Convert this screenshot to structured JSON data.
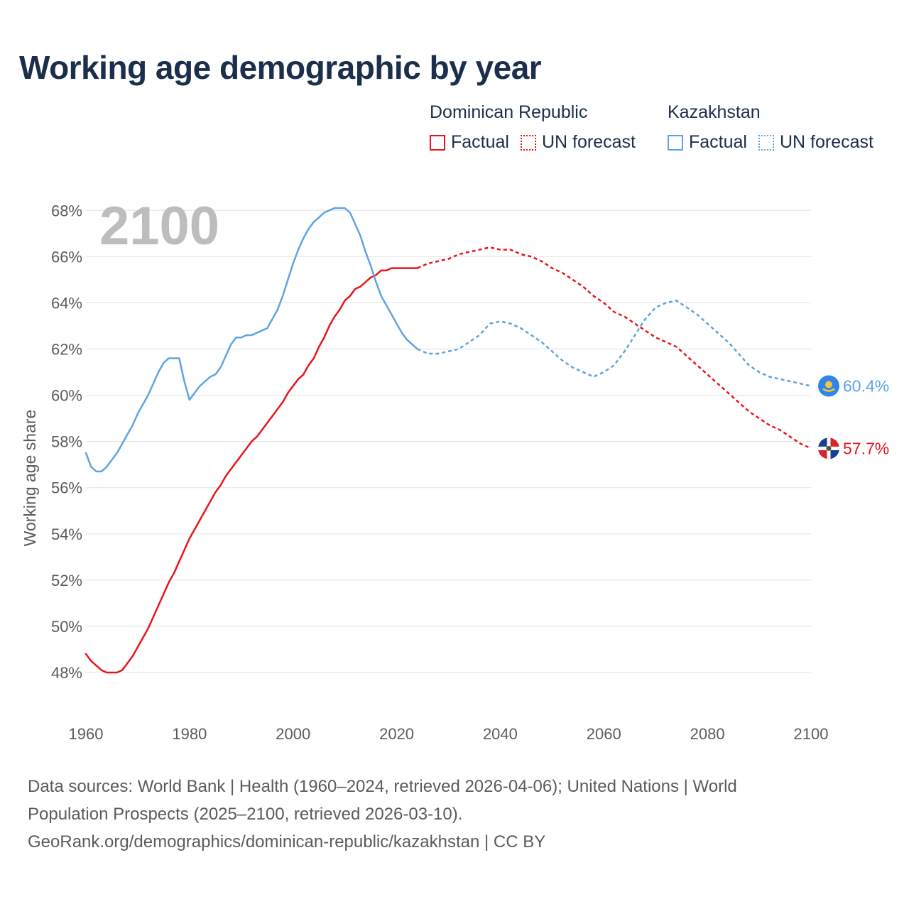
{
  "title": "Working age demographic by year",
  "legend": {
    "dominican": {
      "name": "Dominican Republic",
      "factual": "Factual",
      "forecast": "UN forecast",
      "color": "#e8141b"
    },
    "kazakhstan": {
      "name": "Kazakhstan",
      "factual": "Factual",
      "forecast": "UN forecast",
      "color": "#5fa4e0"
    }
  },
  "footer": {
    "line1": "Data sources: World Bank | Health (1960–2024, retrieved 2026-04-06); United Nations | World",
    "line2": "Population Prospects (2025–2100, retrieved 2026-03-10).",
    "line3": "GeoRank.org/demographics/dominican-republic/kazakhstan | CC BY"
  },
  "chart_data": {
    "type": "line",
    "title": "Working age demographic by year",
    "ylabel": "Working age share",
    "xlabel": "",
    "xlim": [
      1960,
      2100
    ],
    "ylim": [
      46.8,
      68.5
    ],
    "xticks": [
      1960,
      1980,
      2000,
      2020,
      2040,
      2060,
      2080,
      2100
    ],
    "xtick_labels": [
      "1960",
      "1980",
      "2000",
      "2020",
      "2040",
      "2060",
      "2080",
      "2100"
    ],
    "yticks": [
      48,
      50,
      52,
      54,
      56,
      58,
      60,
      62,
      64,
      66,
      68
    ],
    "ytick_labels": [
      "48%",
      "50%",
      "52%",
      "54%",
      "56%",
      "58%",
      "60%",
      "62%",
      "64%",
      "66%",
      "68%"
    ],
    "current_year_label": "2100",
    "series": [
      {
        "name": "Dominican Republic",
        "color": "#e8141b",
        "end_label": "57.7%",
        "end_icon": "dominican-republic-flag-icon",
        "factual": {
          "x": [
            1960,
            1961,
            1962,
            1963,
            1964,
            1965,
            1966,
            1967,
            1968,
            1969,
            1970,
            1971,
            1972,
            1973,
            1974,
            1975,
            1976,
            1977,
            1978,
            1979,
            1980,
            1981,
            1982,
            1983,
            1984,
            1985,
            1986,
            1987,
            1988,
            1989,
            1990,
            1991,
            1992,
            1993,
            1994,
            1995,
            1996,
            1997,
            1998,
            1999,
            2000,
            2001,
            2002,
            2003,
            2004,
            2005,
            2006,
            2007,
            2008,
            2009,
            2010,
            2011,
            2012,
            2013,
            2014,
            2015,
            2016,
            2017,
            2018,
            2019,
            2020,
            2021,
            2022,
            2023,
            2024
          ],
          "y": [
            48.8,
            48.5,
            48.3,
            48.1,
            48.0,
            48.0,
            48.0,
            48.1,
            48.4,
            48.7,
            49.1,
            49.5,
            49.9,
            50.4,
            50.9,
            51.4,
            51.9,
            52.3,
            52.8,
            53.3,
            53.8,
            54.2,
            54.6,
            55.0,
            55.4,
            55.8,
            56.1,
            56.5,
            56.8,
            57.1,
            57.4,
            57.7,
            58.0,
            58.2,
            58.5,
            58.8,
            59.1,
            59.4,
            59.7,
            60.1,
            60.4,
            60.7,
            60.9,
            61.3,
            61.6,
            62.1,
            62.5,
            63.0,
            63.4,
            63.7,
            64.1,
            64.3,
            64.6,
            64.7,
            64.9,
            65.1,
            65.2,
            65.4,
            65.4,
            65.5,
            65.5,
            65.5,
            65.5,
            65.5,
            65.5
          ]
        },
        "forecast": {
          "x": [
            2024,
            2026,
            2028,
            2030,
            2032,
            2034,
            2036,
            2038,
            2040,
            2042,
            2044,
            2046,
            2048,
            2050,
            2052,
            2054,
            2056,
            2058,
            2060,
            2062,
            2064,
            2066,
            2068,
            2070,
            2072,
            2074,
            2076,
            2078,
            2080,
            2082,
            2084,
            2086,
            2088,
            2090,
            2092,
            2094,
            2096,
            2098,
            2100
          ],
          "y": [
            65.5,
            65.7,
            65.8,
            65.9,
            66.1,
            66.2,
            66.3,
            66.4,
            66.3,
            66.3,
            66.1,
            66.0,
            65.8,
            65.5,
            65.3,
            65.0,
            64.7,
            64.3,
            64.0,
            63.6,
            63.4,
            63.1,
            62.8,
            62.5,
            62.3,
            62.1,
            61.7,
            61.3,
            60.9,
            60.5,
            60.1,
            59.7,
            59.3,
            59.0,
            58.7,
            58.5,
            58.2,
            57.9,
            57.7
          ]
        }
      },
      {
        "name": "Kazakhstan",
        "color": "#5fa4e0",
        "end_label": "60.4%",
        "end_icon": "kazakhstan-flag-icon",
        "factual": {
          "x": [
            1960,
            1961,
            1962,
            1963,
            1964,
            1965,
            1966,
            1967,
            1968,
            1969,
            1970,
            1971,
            1972,
            1973,
            1974,
            1975,
            1976,
            1977,
            1978,
            1979,
            1980,
            1981,
            1982,
            1983,
            1984,
            1985,
            1986,
            1987,
            1988,
            1989,
            1990,
            1991,
            1992,
            1993,
            1994,
            1995,
            1996,
            1997,
            1998,
            1999,
            2000,
            2001,
            2002,
            2003,
            2004,
            2005,
            2006,
            2007,
            2008,
            2009,
            2010,
            2011,
            2012,
            2013,
            2014,
            2015,
            2016,
            2017,
            2018,
            2019,
            2020,
            2021,
            2022,
            2023,
            2024
          ],
          "y": [
            57.5,
            56.9,
            56.7,
            56.7,
            56.9,
            57.2,
            57.5,
            57.9,
            58.3,
            58.7,
            59.2,
            59.6,
            60.0,
            60.5,
            61.0,
            61.4,
            61.6,
            61.6,
            61.6,
            60.6,
            59.8,
            60.1,
            60.4,
            60.6,
            60.8,
            60.9,
            61.2,
            61.7,
            62.2,
            62.5,
            62.5,
            62.6,
            62.6,
            62.7,
            62.8,
            62.9,
            63.3,
            63.7,
            64.3,
            65.0,
            65.7,
            66.3,
            66.8,
            67.2,
            67.5,
            67.7,
            67.9,
            68.0,
            68.1,
            68.1,
            68.1,
            67.9,
            67.4,
            66.9,
            66.2,
            65.6,
            64.9,
            64.3,
            63.9,
            63.5,
            63.1,
            62.7,
            62.4,
            62.2,
            62.0
          ]
        },
        "forecast": {
          "x": [
            2024,
            2026,
            2028,
            2030,
            2032,
            2034,
            2036,
            2038,
            2040,
            2042,
            2044,
            2046,
            2048,
            2050,
            2052,
            2054,
            2056,
            2058,
            2060,
            2062,
            2064,
            2066,
            2068,
            2070,
            2072,
            2074,
            2076,
            2078,
            2080,
            2082,
            2084,
            2086,
            2088,
            2090,
            2092,
            2094,
            2096,
            2098,
            2100
          ],
          "y": [
            62.0,
            61.8,
            61.8,
            61.9,
            62.0,
            62.3,
            62.6,
            63.1,
            63.2,
            63.1,
            62.9,
            62.6,
            62.3,
            61.9,
            61.5,
            61.2,
            61.0,
            60.8,
            61.0,
            61.3,
            61.9,
            62.6,
            63.3,
            63.8,
            64.0,
            64.1,
            63.8,
            63.5,
            63.1,
            62.7,
            62.3,
            61.8,
            61.3,
            61.0,
            60.8,
            60.7,
            60.6,
            60.5,
            60.4
          ]
        }
      }
    ]
  }
}
